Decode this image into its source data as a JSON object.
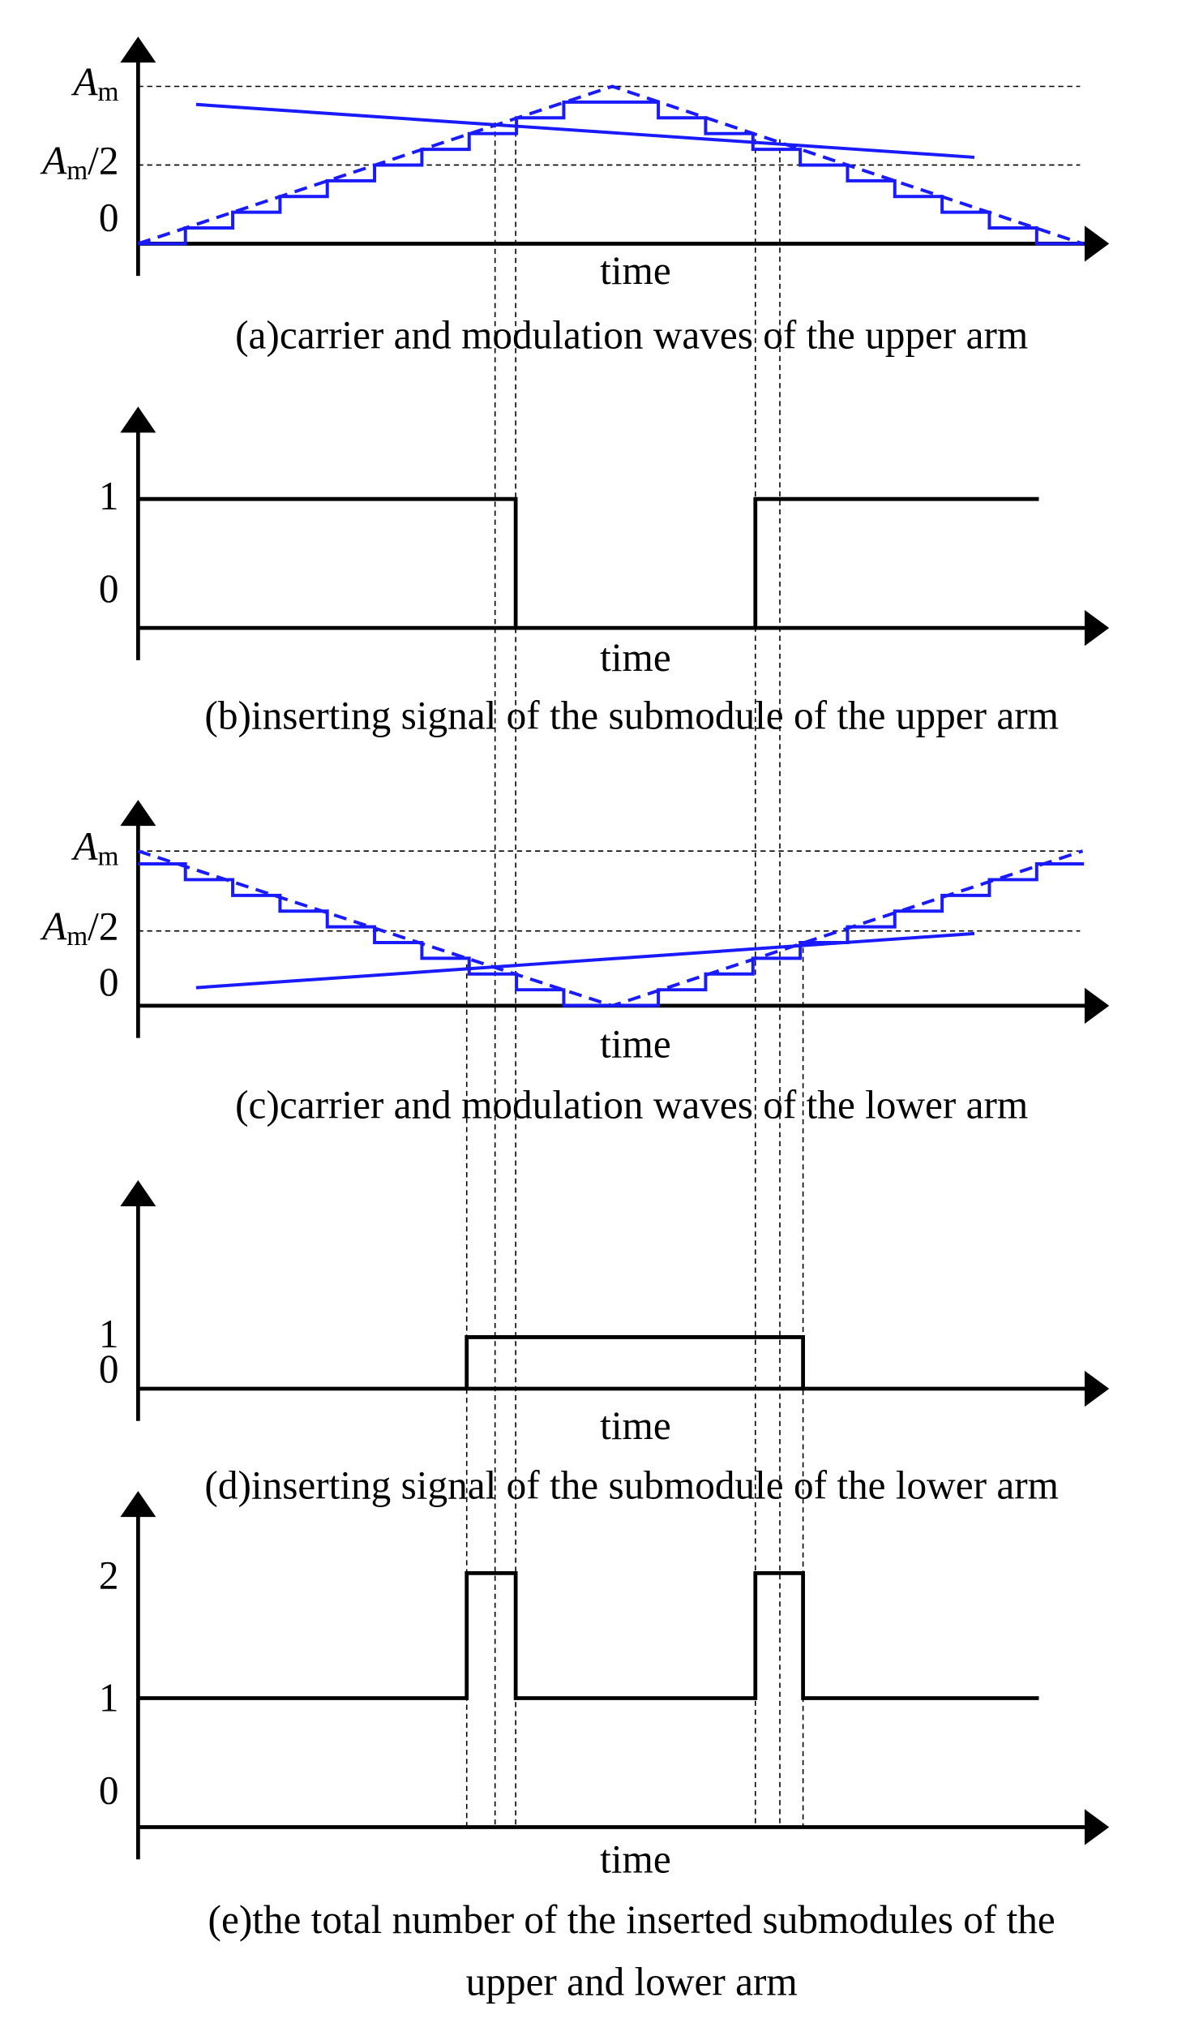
{
  "panels": [
    {
      "y_labels": [
        {
          "italic": "A",
          "sub": "m"
        },
        {
          "italic": "A",
          "sub": "m",
          "tail": "/2"
        },
        {
          "text": "0"
        }
      ],
      "x_label": "time",
      "caption": "(a)carrier and modulation waves of the upper arm"
    },
    {
      "y_labels": [
        {
          "text": "1"
        },
        {
          "text": "0"
        }
      ],
      "x_label": "time",
      "caption": "(b)inserting signal of the submodule of the upper arm"
    },
    {
      "y_labels": [
        {
          "italic": "A",
          "sub": "m"
        },
        {
          "italic": "A",
          "sub": "m",
          "tail": "/2"
        },
        {
          "text": "0"
        }
      ],
      "x_label": "time",
      "caption": "(c)carrier and modulation waves of the lower arm"
    },
    {
      "y_labels": [
        {
          "text": "1"
        },
        {
          "text": "0"
        }
      ],
      "x_label": "time",
      "caption": "(d)inserting signal of the submodule of the lower arm"
    },
    {
      "y_labels": [
        {
          "text": "2"
        },
        {
          "text": "1"
        },
        {
          "text": "0"
        }
      ],
      "x_label": "time",
      "caption": [
        "(e)the total number of the inserted submodules of the",
        "upper and lower arm"
      ]
    }
  ]
}
